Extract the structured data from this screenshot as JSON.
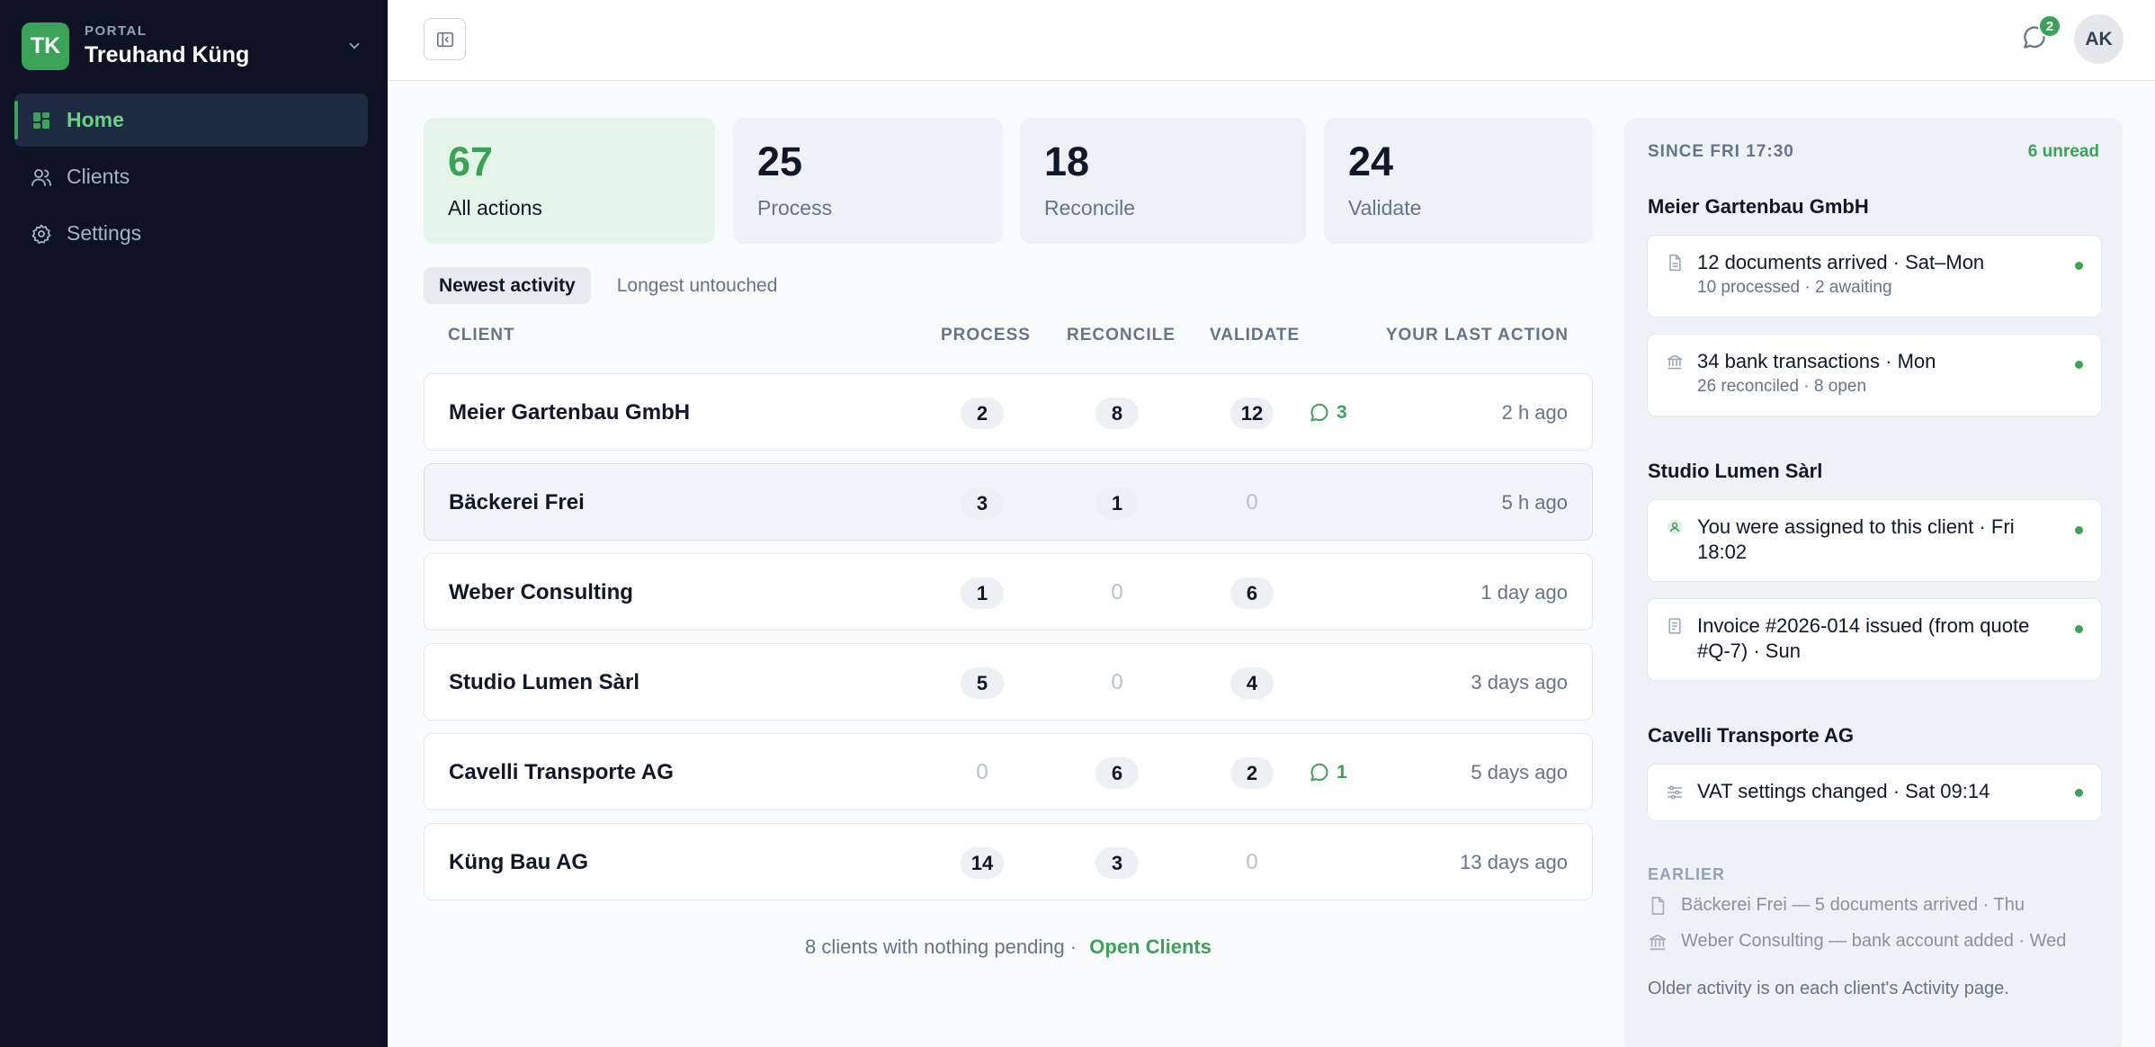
{
  "workspace": {
    "logo": "TK",
    "kicker": "PORTAL",
    "name": "Treuhand Küng"
  },
  "nav": [
    {
      "label": "Home",
      "icon": "grid-icon",
      "active": true
    },
    {
      "label": "Clients",
      "icon": "users-icon"
    },
    {
      "label": "Settings",
      "icon": "gear-icon"
    }
  ],
  "topbar": {
    "messages_badge": "2",
    "avatar": "AK"
  },
  "stats": [
    {
      "value": "67",
      "label": "All actions"
    },
    {
      "value": "25",
      "label": "Process"
    },
    {
      "value": "18",
      "label": "Reconcile"
    },
    {
      "value": "24",
      "label": "Validate"
    }
  ],
  "tabs": [
    "Newest activity",
    "Longest untouched"
  ],
  "table": {
    "columns": [
      "CLIENT",
      "PROCESS",
      "RECONCILE",
      "VALIDATE",
      "YOUR LAST ACTION"
    ],
    "rows": [
      {
        "client": "Meier Gartenbau GmbH",
        "process": "2",
        "reconcile": "8",
        "validate": "12",
        "comments": "3",
        "last": "2 h ago"
      },
      {
        "client": "Bäckerei Frei",
        "process": "3",
        "reconcile": "1",
        "validate": "0",
        "comments": "",
        "last": "5 h ago"
      },
      {
        "client": "Weber Consulting",
        "process": "1",
        "reconcile": "0",
        "validate": "6",
        "comments": "",
        "last": "1 day ago"
      },
      {
        "client": "Studio Lumen Sàrl",
        "process": "5",
        "reconcile": "0",
        "validate": "4",
        "comments": "",
        "last": "3 days ago"
      },
      {
        "client": "Cavelli Transporte AG",
        "process": "0",
        "reconcile": "6",
        "validate": "2",
        "comments": "1",
        "last": "5 days ago"
      },
      {
        "client": "Küng Bau AG",
        "process": "14",
        "reconcile": "3",
        "validate": "0",
        "comments": "",
        "last": "13 days ago"
      }
    ]
  },
  "footer": {
    "text": "8 clients with nothing pending ·",
    "link": "Open Clients"
  },
  "activity": {
    "since": "SINCE FRI 17:30",
    "unread": "6 unread",
    "groups": [
      {
        "title": "Meier Gartenbau GmbH",
        "items": [
          {
            "icon": "document-icon",
            "title": "12 documents arrived · Sat–Mon",
            "sub": "10 processed · 2 awaiting"
          },
          {
            "icon": "bank-icon",
            "title": "34 bank transactions · Mon",
            "sub": "26 reconciled · 8 open"
          }
        ]
      },
      {
        "title": "Studio Lumen Sàrl",
        "items": [
          {
            "icon": "user-icon",
            "title": "You were assigned to this client · Fri 18:02",
            "sub": ""
          },
          {
            "icon": "invoice-icon",
            "title": "Invoice #2026-014 issued (from quote #Q-7) · Sun",
            "sub": ""
          }
        ]
      },
      {
        "title": "Cavelli Transporte AG",
        "items": [
          {
            "icon": "sliders-icon",
            "title": "VAT settings changed · Sat 09:14",
            "sub": ""
          }
        ]
      }
    ],
    "earlier_label": "EARLIER",
    "earlier": [
      {
        "icon": "document-icon",
        "text": "Bäckerei Frei — 5 documents arrived · Thu"
      },
      {
        "icon": "bank-icon",
        "text": "Weber Consulting — bank account added · Wed"
      }
    ],
    "older_note": "Older activity is on each client's Activity page."
  },
  "colors": {
    "sidebar": "#0d1325",
    "accent": "#3aa357",
    "panel": "#eef1f5"
  }
}
